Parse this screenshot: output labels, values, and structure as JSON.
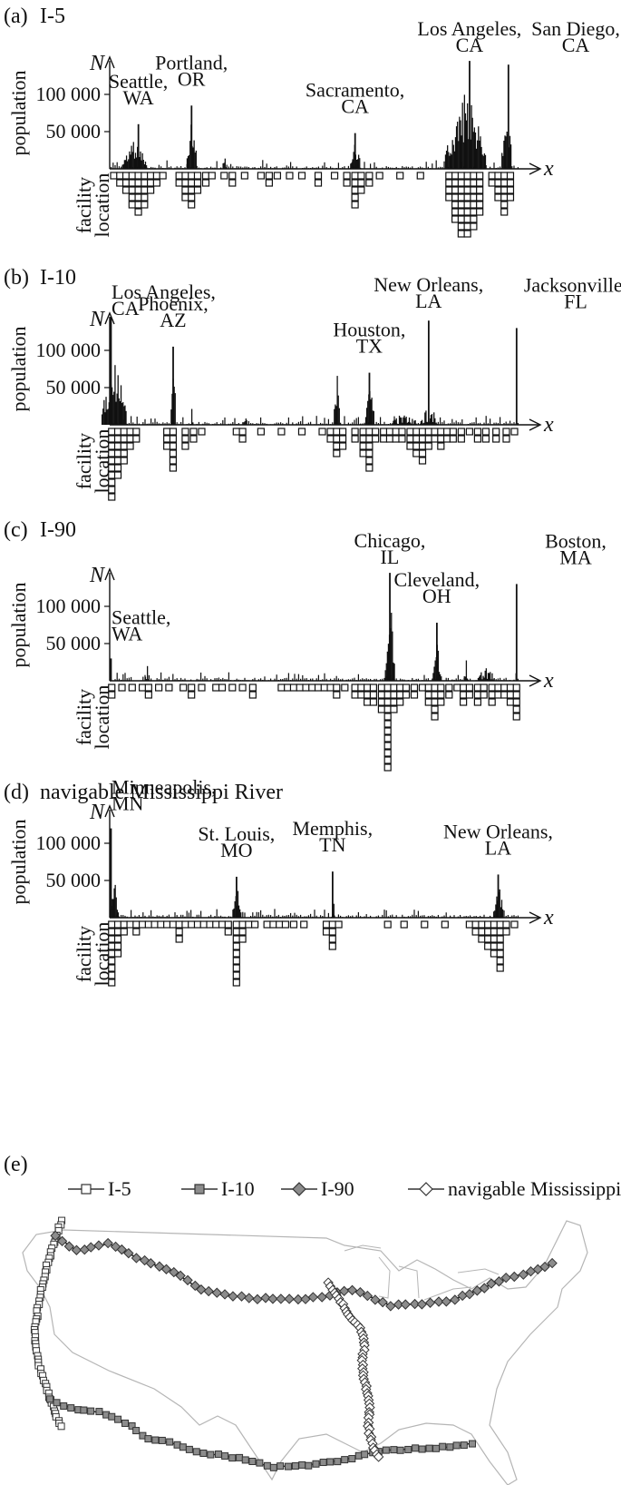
{
  "chart_data": [
    {
      "panel": "(a)",
      "title": "I-5",
      "type": "bar",
      "ylabel": "population",
      "xvar": "x",
      "yvar": "N",
      "facility_label": [
        "facility",
        "location"
      ],
      "y_ticks": [
        50000,
        100000
      ],
      "y_tick_labels": [
        "50 000",
        "100 000"
      ],
      "ylim": [
        0,
        150000
      ],
      "cities": [
        {
          "name": [
            "Seattle,",
            "WA"
          ],
          "x": 0.07,
          "peak": 60000
        },
        {
          "name": [
            "Portland,",
            "OR"
          ],
          "x": 0.2,
          "peak": 85000
        },
        {
          "name": [
            "Sacramento,",
            "CA"
          ],
          "x": 0.6,
          "peak": 48000
        },
        {
          "name": [
            "Los Angeles,",
            "CA"
          ],
          "x": 0.88,
          "peak": 145000
        },
        {
          "name": [
            "San Diego,",
            "CA"
          ],
          "x": 0.975,
          "peak": 140000
        }
      ],
      "clusters": [
        [
          0.06,
          0.03,
          40000,
          1
        ],
        [
          0.2,
          0.012,
          70000,
          1
        ],
        [
          0.28,
          0.004,
          30000,
          0
        ],
        [
          0.6,
          0.012,
          40000,
          1
        ],
        [
          0.87,
          0.05,
          110000,
          1
        ],
        [
          0.97,
          0.012,
          90000,
          1
        ]
      ],
      "facilities": [
        {
          "x": 0.01,
          "count": 1
        },
        {
          "x": 0.025,
          "count": 2
        },
        {
          "x": 0.04,
          "count": 3
        },
        {
          "x": 0.055,
          "count": 5
        },
        {
          "x": 0.07,
          "count": 6
        },
        {
          "x": 0.085,
          "count": 5
        },
        {
          "x": 0.1,
          "count": 3
        },
        {
          "x": 0.115,
          "count": 2
        },
        {
          "x": 0.13,
          "count": 1
        },
        {
          "x": 0.17,
          "count": 2
        },
        {
          "x": 0.185,
          "count": 4
        },
        {
          "x": 0.2,
          "count": 5
        },
        {
          "x": 0.215,
          "count": 3
        },
        {
          "x": 0.235,
          "count": 2
        },
        {
          "x": 0.25,
          "count": 1
        },
        {
          "x": 0.28,
          "count": 1
        },
        {
          "x": 0.3,
          "count": 2
        },
        {
          "x": 0.33,
          "count": 1
        },
        {
          "x": 0.37,
          "count": 1
        },
        {
          "x": 0.39,
          "count": 2
        },
        {
          "x": 0.41,
          "count": 1
        },
        {
          "x": 0.44,
          "count": 1
        },
        {
          "x": 0.47,
          "count": 1
        },
        {
          "x": 0.51,
          "count": 2
        },
        {
          "x": 0.55,
          "count": 1
        },
        {
          "x": 0.58,
          "count": 2
        },
        {
          "x": 0.6,
          "count": 5
        },
        {
          "x": 0.615,
          "count": 3
        },
        {
          "x": 0.635,
          "count": 2
        },
        {
          "x": 0.66,
          "count": 1
        },
        {
          "x": 0.71,
          "count": 1
        },
        {
          "x": 0.76,
          "count": 1
        },
        {
          "x": 0.83,
          "count": 4
        },
        {
          "x": 0.845,
          "count": 7
        },
        {
          "x": 0.86,
          "count": 9
        },
        {
          "x": 0.875,
          "count": 9
        },
        {
          "x": 0.89,
          "count": 8
        },
        {
          "x": 0.905,
          "count": 6
        },
        {
          "x": 0.935,
          "count": 2
        },
        {
          "x": 0.95,
          "count": 4
        },
        {
          "x": 0.965,
          "count": 6
        },
        {
          "x": 0.98,
          "count": 4
        }
      ]
    },
    {
      "panel": "(b)",
      "title": "I-10",
      "type": "bar",
      "ylabel": "population",
      "xvar": "x",
      "yvar": "N",
      "facility_label": [
        "facility",
        "location"
      ],
      "y_ticks": [
        50000,
        100000
      ],
      "y_tick_labels": [
        "50 000",
        "100 000"
      ],
      "ylim": [
        0,
        150000
      ],
      "cities": [
        {
          "name": [
            "Los Angeles,",
            "CA"
          ],
          "x": 0.003,
          "peak": 145000
        },
        {
          "name": [
            "Phoenix,",
            "AZ"
          ],
          "x": 0.155,
          "peak": 105000
        },
        {
          "name": [
            "Houston,",
            "TX"
          ],
          "x": 0.635,
          "peak": 70000
        },
        {
          "name": [
            "New Orleans,",
            "LA"
          ],
          "x": 0.78,
          "peak": 140000
        },
        {
          "name": [
            "Jacksonville,",
            "FL"
          ],
          "x": 0.995,
          "peak": 130000
        }
      ],
      "clusters": [
        [
          0.01,
          0.03,
          90000,
          1
        ],
        [
          0.155,
          0.006,
          90000,
          1
        ],
        [
          0.2,
          0.003,
          40000,
          0
        ],
        [
          0.33,
          0.003,
          35000,
          0
        ],
        [
          0.555,
          0.007,
          85000,
          1
        ],
        [
          0.635,
          0.01,
          65000,
          1
        ],
        [
          0.72,
          0.03,
          20000,
          0
        ],
        [
          0.78,
          0.02,
          30000,
          0
        ]
      ],
      "facilities": [
        {
          "x": 0.005,
          "count": 10
        },
        {
          "x": 0.02,
          "count": 7
        },
        {
          "x": 0.035,
          "count": 5
        },
        {
          "x": 0.05,
          "count": 3
        },
        {
          "x": 0.065,
          "count": 2
        },
        {
          "x": 0.14,
          "count": 3
        },
        {
          "x": 0.155,
          "count": 6
        },
        {
          "x": 0.185,
          "count": 3
        },
        {
          "x": 0.205,
          "count": 2
        },
        {
          "x": 0.225,
          "count": 1
        },
        {
          "x": 0.31,
          "count": 1
        },
        {
          "x": 0.325,
          "count": 2
        },
        {
          "x": 0.37,
          "count": 1
        },
        {
          "x": 0.42,
          "count": 1
        },
        {
          "x": 0.47,
          "count": 1
        },
        {
          "x": 0.52,
          "count": 1
        },
        {
          "x": 0.54,
          "count": 2
        },
        {
          "x": 0.555,
          "count": 4
        },
        {
          "x": 0.57,
          "count": 3
        },
        {
          "x": 0.6,
          "count": 2
        },
        {
          "x": 0.62,
          "count": 4
        },
        {
          "x": 0.635,
          "count": 6
        },
        {
          "x": 0.65,
          "count": 2
        },
        {
          "x": 0.67,
          "count": 2
        },
        {
          "x": 0.685,
          "count": 2
        },
        {
          "x": 0.7,
          "count": 2
        },
        {
          "x": 0.715,
          "count": 2
        },
        {
          "x": 0.735,
          "count": 3
        },
        {
          "x": 0.75,
          "count": 4
        },
        {
          "x": 0.765,
          "count": 5
        },
        {
          "x": 0.78,
          "count": 3
        },
        {
          "x": 0.795,
          "count": 2
        },
        {
          "x": 0.81,
          "count": 3
        },
        {
          "x": 0.825,
          "count": 2
        },
        {
          "x": 0.84,
          "count": 2
        },
        {
          "x": 0.86,
          "count": 2
        },
        {
          "x": 0.88,
          "count": 1
        },
        {
          "x": 0.9,
          "count": 2
        },
        {
          "x": 0.92,
          "count": 2
        },
        {
          "x": 0.945,
          "count": 2
        },
        {
          "x": 0.97,
          "count": 2
        },
        {
          "x": 0.99,
          "count": 1
        }
      ]
    },
    {
      "panel": "(c)",
      "title": "I-90",
      "type": "bar",
      "ylabel": "population",
      "xvar": "x",
      "yvar": "N",
      "facility_label": [
        "facility",
        "location"
      ],
      "y_ticks": [
        50000,
        100000
      ],
      "y_tick_labels": [
        "50 000",
        "100 000"
      ],
      "ylim": [
        0,
        150000
      ],
      "cities": [
        {
          "name": [
            "Seattle,",
            "WA"
          ],
          "x": 0.003,
          "peak": 30000
        },
        {
          "name": [
            "Chicago,",
            "IL"
          ],
          "x": 0.685,
          "peak": 145000
        },
        {
          "name": [
            "Cleveland,",
            "OH"
          ],
          "x": 0.8,
          "peak": 78000
        },
        {
          "name": [
            "Boston,",
            "MA"
          ],
          "x": 0.995,
          "peak": 130000
        }
      ],
      "clusters": [
        [
          0.09,
          0.004,
          30000,
          0
        ],
        [
          0.685,
          0.012,
          110000,
          1
        ],
        [
          0.8,
          0.01,
          50000,
          1
        ],
        [
          0.87,
          0.004,
          50000,
          0
        ],
        [
          0.92,
          0.02,
          25000,
          0
        ]
      ],
      "facilities": [
        {
          "x": 0.005,
          "count": 2
        },
        {
          "x": 0.03,
          "count": 1
        },
        {
          "x": 0.055,
          "count": 1
        },
        {
          "x": 0.08,
          "count": 1
        },
        {
          "x": 0.095,
          "count": 2
        },
        {
          "x": 0.12,
          "count": 1
        },
        {
          "x": 0.145,
          "count": 1
        },
        {
          "x": 0.18,
          "count": 1
        },
        {
          "x": 0.2,
          "count": 2
        },
        {
          "x": 0.225,
          "count": 1
        },
        {
          "x": 0.26,
          "count": 1
        },
        {
          "x": 0.275,
          "count": 1
        },
        {
          "x": 0.3,
          "count": 1
        },
        {
          "x": 0.325,
          "count": 1
        },
        {
          "x": 0.35,
          "count": 2
        },
        {
          "x": 0.42,
          "count": 1
        },
        {
          "x": 0.435,
          "count": 1
        },
        {
          "x": 0.45,
          "count": 1
        },
        {
          "x": 0.465,
          "count": 1
        },
        {
          "x": 0.48,
          "count": 1
        },
        {
          "x": 0.495,
          "count": 1
        },
        {
          "x": 0.51,
          "count": 1
        },
        {
          "x": 0.525,
          "count": 1
        },
        {
          "x": 0.54,
          "count": 1
        },
        {
          "x": 0.555,
          "count": 2
        },
        {
          "x": 0.575,
          "count": 1
        },
        {
          "x": 0.6,
          "count": 2
        },
        {
          "x": 0.615,
          "count": 2
        },
        {
          "x": 0.63,
          "count": 3
        },
        {
          "x": 0.645,
          "count": 3
        },
        {
          "x": 0.665,
          "count": 4
        },
        {
          "x": 0.68,
          "count": 12
        },
        {
          "x": 0.695,
          "count": 4
        },
        {
          "x": 0.71,
          "count": 3
        },
        {
          "x": 0.725,
          "count": 2
        },
        {
          "x": 0.745,
          "count": 2
        },
        {
          "x": 0.765,
          "count": 1
        },
        {
          "x": 0.78,
          "count": 3
        },
        {
          "x": 0.795,
          "count": 5
        },
        {
          "x": 0.81,
          "count": 3
        },
        {
          "x": 0.83,
          "count": 2
        },
        {
          "x": 0.85,
          "count": 1
        },
        {
          "x": 0.865,
          "count": 3
        },
        {
          "x": 0.88,
          "count": 2
        },
        {
          "x": 0.9,
          "count": 3
        },
        {
          "x": 0.915,
          "count": 2
        },
        {
          "x": 0.935,
          "count": 3
        },
        {
          "x": 0.95,
          "count": 2
        },
        {
          "x": 0.965,
          "count": 2
        },
        {
          "x": 0.98,
          "count": 3
        },
        {
          "x": 0.995,
          "count": 5
        }
      ]
    },
    {
      "panel": "(d)",
      "title": "navigable Mississippi River",
      "type": "bar",
      "ylabel": "population",
      "xvar": "x",
      "yvar": "N",
      "facility_label": [
        "facility",
        "location"
      ],
      "y_ticks": [
        50000,
        100000
      ],
      "y_tick_labels": [
        "50 000",
        "100 000"
      ],
      "ylim": [
        0,
        150000
      ],
      "cities": [
        {
          "name": [
            "Minneapolis,",
            "MN"
          ],
          "x": 0.003,
          "peak": 120000
        },
        {
          "name": [
            "St. Louis,",
            "MO"
          ],
          "x": 0.31,
          "peak": 55000
        },
        {
          "name": [
            "Memphis,",
            "TN"
          ],
          "x": 0.545,
          "peak": 62000
        },
        {
          "name": [
            "New Orleans,",
            "LA"
          ],
          "x": 0.95,
          "peak": 58000
        }
      ],
      "clusters": [
        [
          0.01,
          0.01,
          55000,
          1
        ],
        [
          0.31,
          0.01,
          45000,
          1
        ],
        [
          0.545,
          0.003,
          55000,
          0
        ],
        [
          0.95,
          0.012,
          50000,
          1
        ]
      ],
      "facilities": [
        {
          "x": 0.005,
          "count": 9
        },
        {
          "x": 0.02,
          "count": 5
        },
        {
          "x": 0.035,
          "count": 2
        },
        {
          "x": 0.05,
          "count": 1
        },
        {
          "x": 0.065,
          "count": 2
        },
        {
          "x": 0.08,
          "count": 1
        },
        {
          "x": 0.095,
          "count": 1
        },
        {
          "x": 0.11,
          "count": 1
        },
        {
          "x": 0.125,
          "count": 1
        },
        {
          "x": 0.14,
          "count": 1
        },
        {
          "x": 0.155,
          "count": 1
        },
        {
          "x": 0.17,
          "count": 3
        },
        {
          "x": 0.185,
          "count": 1
        },
        {
          "x": 0.2,
          "count": 1
        },
        {
          "x": 0.215,
          "count": 1
        },
        {
          "x": 0.23,
          "count": 1
        },
        {
          "x": 0.245,
          "count": 1
        },
        {
          "x": 0.26,
          "count": 1
        },
        {
          "x": 0.275,
          "count": 1
        },
        {
          "x": 0.29,
          "count": 2
        },
        {
          "x": 0.31,
          "count": 9
        },
        {
          "x": 0.325,
          "count": 3
        },
        {
          "x": 0.34,
          "count": 1
        },
        {
          "x": 0.355,
          "count": 1
        },
        {
          "x": 0.385,
          "count": 1
        },
        {
          "x": 0.4,
          "count": 1
        },
        {
          "x": 0.415,
          "count": 1
        },
        {
          "x": 0.43,
          "count": 1
        },
        {
          "x": 0.45,
          "count": 1
        },
        {
          "x": 0.475,
          "count": 1
        },
        {
          "x": 0.53,
          "count": 2
        },
        {
          "x": 0.545,
          "count": 4
        },
        {
          "x": 0.56,
          "count": 1
        },
        {
          "x": 0.68,
          "count": 1
        },
        {
          "x": 0.72,
          "count": 1
        },
        {
          "x": 0.77,
          "count": 1
        },
        {
          "x": 0.82,
          "count": 1
        },
        {
          "x": 0.88,
          "count": 1
        },
        {
          "x": 0.895,
          "count": 2
        },
        {
          "x": 0.91,
          "count": 3
        },
        {
          "x": 0.925,
          "count": 4
        },
        {
          "x": 0.94,
          "count": 5
        },
        {
          "x": 0.955,
          "count": 7
        },
        {
          "x": 0.97,
          "count": 2
        },
        {
          "x": 0.99,
          "count": 1
        }
      ]
    }
  ],
  "map": {
    "panel": "(e)",
    "legend": [
      {
        "label": "I-5",
        "marker": "square",
        "fill": "#ffffff"
      },
      {
        "label": "I-10",
        "marker": "square",
        "fill": "#8c8c8c"
      },
      {
        "label": "I-90",
        "marker": "diamond",
        "fill": "#8c8c8c"
      },
      {
        "label": "navigable Mississippi",
        "marker": "diamond",
        "fill": "#ffffff"
      }
    ]
  }
}
